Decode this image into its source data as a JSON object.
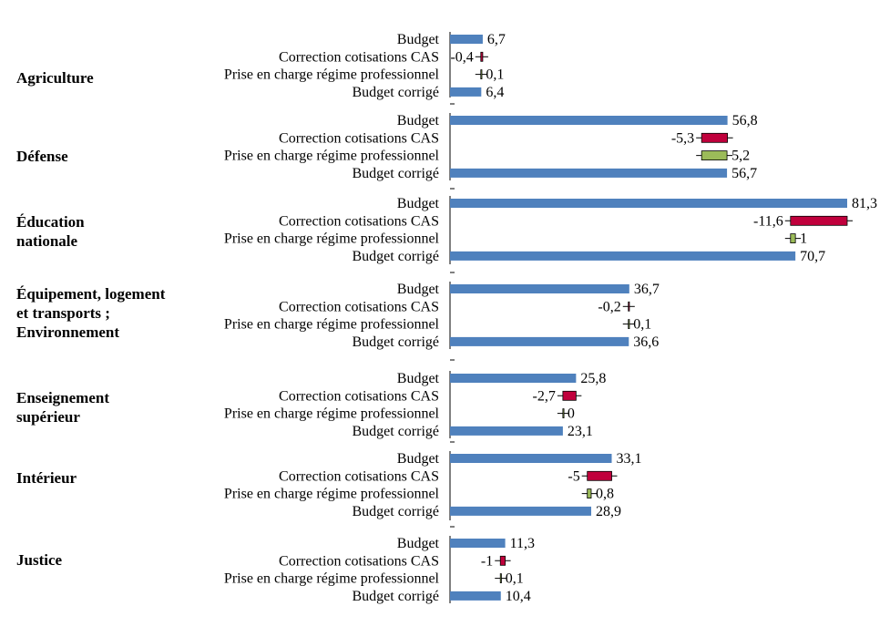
{
  "chart_data": {
    "type": "bar",
    "orientation": "horizontal",
    "title": "",
    "xlabel": "",
    "ylabel": "",
    "grid": false,
    "legend": "none",
    "xlim": [
      0,
      81.3
    ],
    "colors": {
      "Budget": "#4F81BD",
      "Budget corrigé": "#4F81BD",
      "Correction cotisations CAS": "#C0003C",
      "Prise en charge régime professionnel": "#9BBB59",
      "border": "#000000"
    },
    "groups": [
      {
        "label_lines": [
          "Agriculture"
        ],
        "rows": [
          {
            "label": "Budget",
            "value": 6.7,
            "label_text": "6,7"
          },
          {
            "label": "Correction cotisations CAS",
            "value": -0.4,
            "label_text": "-0,4"
          },
          {
            "label": "Prise en charge régime professionnel",
            "value": 0.1,
            "label_text": "0,1"
          },
          {
            "label": "Budget corrigé",
            "value": 6.4,
            "label_text": "6,4"
          }
        ]
      },
      {
        "label_lines": [
          "Défense"
        ],
        "rows": [
          {
            "label": "Budget",
            "value": 56.8,
            "label_text": "56,8"
          },
          {
            "label": "Correction cotisations CAS",
            "value": -5.3,
            "label_text": "-5,3"
          },
          {
            "label": "Prise en charge régime professionnel",
            "value": 5.2,
            "label_text": "5,2"
          },
          {
            "label": "Budget corrigé",
            "value": 56.7,
            "label_text": "56,7"
          }
        ]
      },
      {
        "label_lines": [
          "Éducation",
          "nationale"
        ],
        "rows": [
          {
            "label": "Budget",
            "value": 81.3,
            "label_text": "81,3"
          },
          {
            "label": "Correction cotisations CAS",
            "value": -11.6,
            "label_text": "-11,6"
          },
          {
            "label": "Prise en charge régime professionnel",
            "value": 1,
            "label_text": "1"
          },
          {
            "label": "Budget corrigé",
            "value": 70.7,
            "label_text": "70,7"
          }
        ]
      },
      {
        "label_lines": [
          "Équipement, logement",
          "et transports ;",
          "Environnement"
        ],
        "rows": [
          {
            "label": "Budget",
            "value": 36.7,
            "label_text": "36,7"
          },
          {
            "label": "Correction cotisations CAS",
            "value": -0.2,
            "label_text": "-0,2"
          },
          {
            "label": "Prise en charge régime professionnel",
            "value": 0.1,
            "label_text": "0,1"
          },
          {
            "label": "Budget corrigé",
            "value": 36.6,
            "label_text": "36,6"
          }
        ]
      },
      {
        "label_lines": [
          "Enseignement",
          "supérieur"
        ],
        "rows": [
          {
            "label": "Budget",
            "value": 25.8,
            "label_text": "25,8"
          },
          {
            "label": "Correction cotisations CAS",
            "value": -2.7,
            "label_text": "-2,7"
          },
          {
            "label": "Prise en charge régime professionnel",
            "value": 0,
            "label_text": "0"
          },
          {
            "label": "Budget corrigé",
            "value": 23.1,
            "label_text": "23,1"
          }
        ]
      },
      {
        "label_lines": [
          "Intérieur"
        ],
        "rows": [
          {
            "label": "Budget",
            "value": 33.1,
            "label_text": "33,1"
          },
          {
            "label": "Correction cotisations CAS",
            "value": -5,
            "label_text": "-5"
          },
          {
            "label": "Prise en charge régime professionnel",
            "value": 0.8,
            "label_text": "0,8"
          },
          {
            "label": "Budget corrigé",
            "value": 28.9,
            "label_text": "28,9"
          }
        ]
      },
      {
        "label_lines": [
          "Justice"
        ],
        "rows": [
          {
            "label": "Budget",
            "value": 11.3,
            "label_text": "11,3"
          },
          {
            "label": "Correction cotisations CAS",
            "value": -1,
            "label_text": "-1"
          },
          {
            "label": "Prise en charge régime professionnel",
            "value": 0.1,
            "label_text": "0,1"
          },
          {
            "label": "Budget corrigé",
            "value": 10.4,
            "label_text": "10,4"
          }
        ]
      }
    ]
  }
}
